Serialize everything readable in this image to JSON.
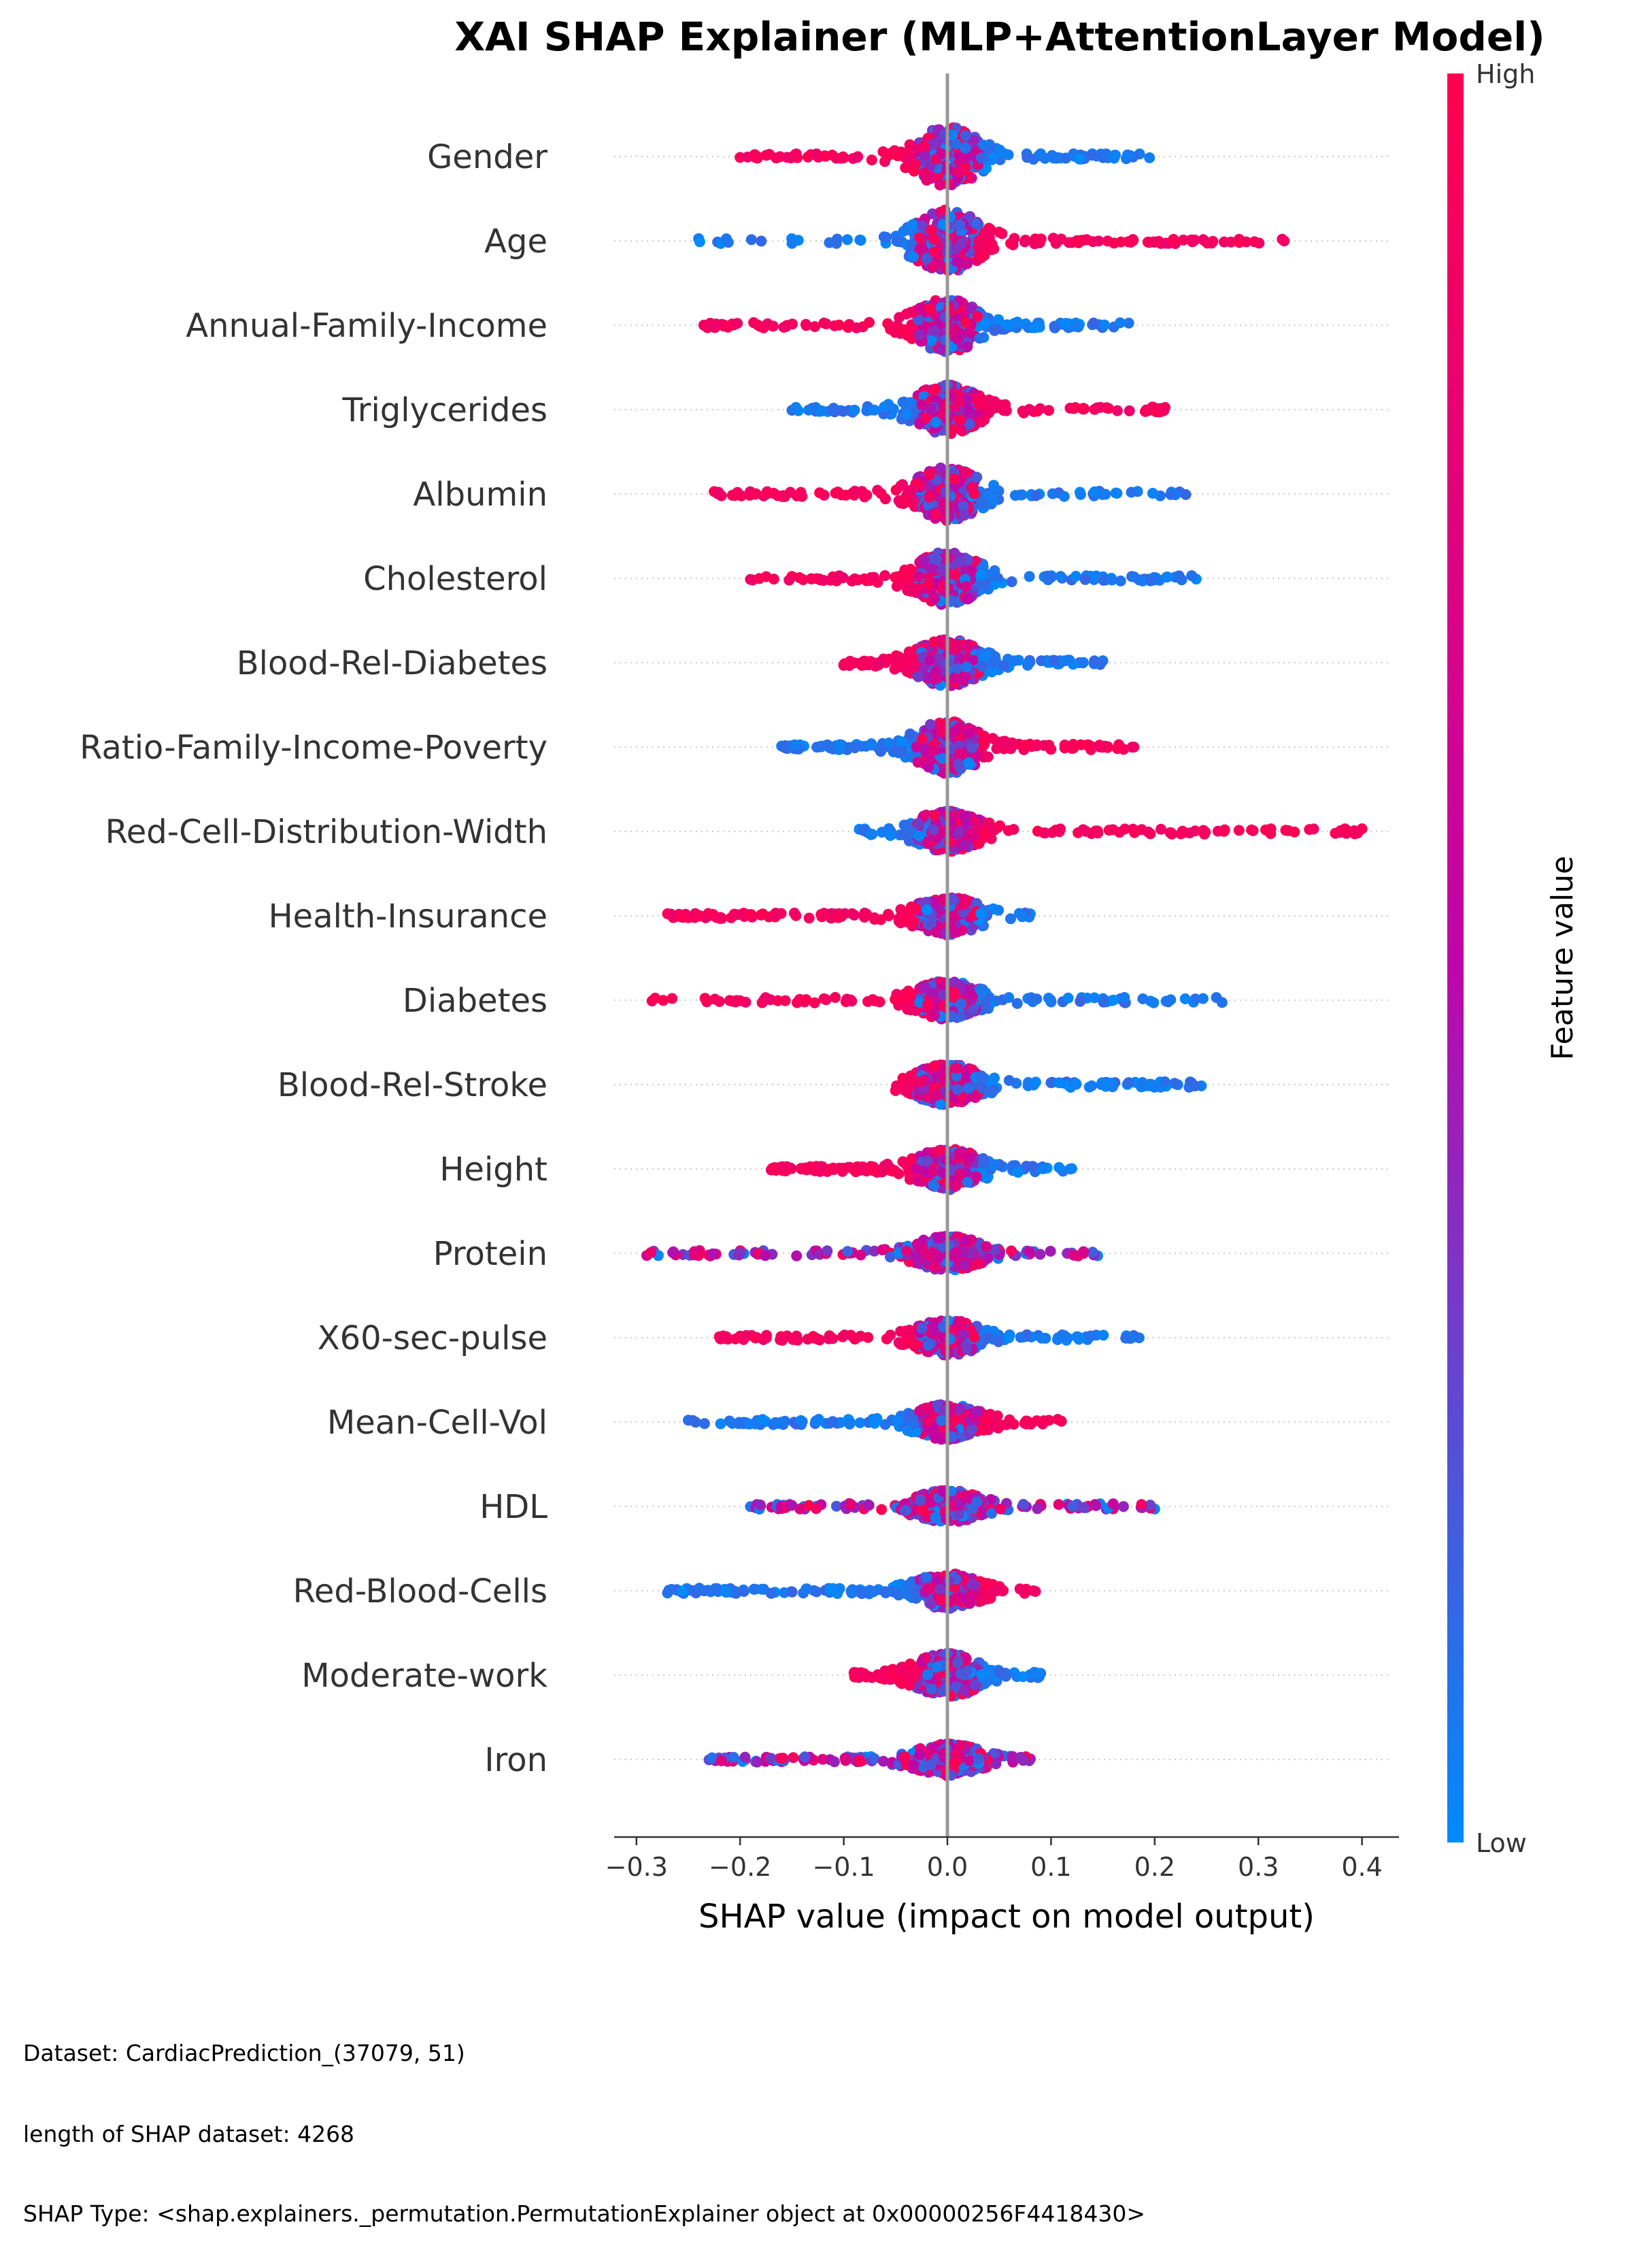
{
  "chart_data": {
    "type": "scatter",
    "subtype": "shap-beeswarm",
    "title": "XAI SHAP Explainer (MLP+AttentionLayer Model)",
    "xlabel": "SHAP value (impact on model output)",
    "xlim": [
      -0.32,
      0.43
    ],
    "xticks": [
      -0.3,
      -0.2,
      -0.1,
      0.0,
      0.1,
      0.2,
      0.3,
      0.4
    ],
    "xtick_labels": [
      "−0.3",
      "−0.2",
      "−0.1",
      "0.0",
      "0.1",
      "0.2",
      "0.3",
      "0.4"
    ],
    "colorbar": {
      "label": "Feature value",
      "high_label": "High",
      "low_label": "Low",
      "high_color": "#ff0051",
      "mid_color": "#c005a8",
      "low_color": "#008bfb"
    },
    "features": [
      {
        "name": "Gender",
        "min": -0.2,
        "max": 0.195,
        "low_side": "right",
        "spread": 0.9
      },
      {
        "name": "Age",
        "min": -0.24,
        "max": 0.325,
        "low_side": "left",
        "spread": 1.0
      },
      {
        "name": "Annual-Family-Income",
        "min": -0.235,
        "max": 0.175,
        "low_side": "right",
        "spread": 0.8
      },
      {
        "name": "Triglycerides",
        "min": -0.15,
        "max": 0.21,
        "low_side": "left",
        "spread": 0.75
      },
      {
        "name": "Albumin",
        "min": -0.225,
        "max": 0.23,
        "low_side": "right",
        "spread": 0.8
      },
      {
        "name": "Cholesterol",
        "min": -0.19,
        "max": 0.24,
        "low_side": "right",
        "spread": 0.8
      },
      {
        "name": "Blood-Rel-Diabetes",
        "min": -0.1,
        "max": 0.15,
        "low_side": "right",
        "spread": 0.7
      },
      {
        "name": "Ratio-Family-Income-Poverty",
        "min": -0.16,
        "max": 0.18,
        "low_side": "left",
        "spread": 0.8
      },
      {
        "name": "Red-Cell-Distribution-Width",
        "min": -0.085,
        "max": 0.4,
        "low_side": "left",
        "spread": 0.6
      },
      {
        "name": "Health-Insurance",
        "min": -0.27,
        "max": 0.08,
        "low_side": "right",
        "spread": 0.55
      },
      {
        "name": "Diabetes",
        "min": -0.285,
        "max": 0.265,
        "low_side": "right",
        "spread": 0.55
      },
      {
        "name": "Blood-Rel-Stroke",
        "min": -0.05,
        "max": 0.245,
        "low_side": "right",
        "spread": 0.6
      },
      {
        "name": "Height",
        "min": -0.17,
        "max": 0.12,
        "low_side": "right",
        "spread": 0.6
      },
      {
        "name": "Protein",
        "min": -0.29,
        "max": 0.145,
        "low_side": "mixed",
        "spread": 0.5
      },
      {
        "name": "X60-sec-pulse",
        "min": -0.22,
        "max": 0.185,
        "low_side": "right",
        "spread": 0.5
      },
      {
        "name": "Mean-Cell-Vol",
        "min": -0.25,
        "max": 0.11,
        "low_side": "left",
        "spread": 0.5
      },
      {
        "name": "HDL",
        "min": -0.19,
        "max": 0.2,
        "low_side": "mixed",
        "spread": 0.45
      },
      {
        "name": "Red-Blood-Cells",
        "min": -0.27,
        "max": 0.085,
        "low_side": "left",
        "spread": 0.5
      },
      {
        "name": "Moderate-work",
        "min": -0.09,
        "max": 0.09,
        "low_side": "right",
        "spread": 0.65
      },
      {
        "name": "Iron",
        "min": -0.23,
        "max": 0.08,
        "low_side": "mixed",
        "spread": 0.45
      }
    ]
  },
  "footer": {
    "dataset": "Dataset:  CardiacPrediction_(37079, 51)",
    "length": "length of SHAP dataset: 4268",
    "shap_type": "SHAP Type: <shap.explainers._permutation.PermutationExplainer object at 0x00000256F4418430>"
  }
}
